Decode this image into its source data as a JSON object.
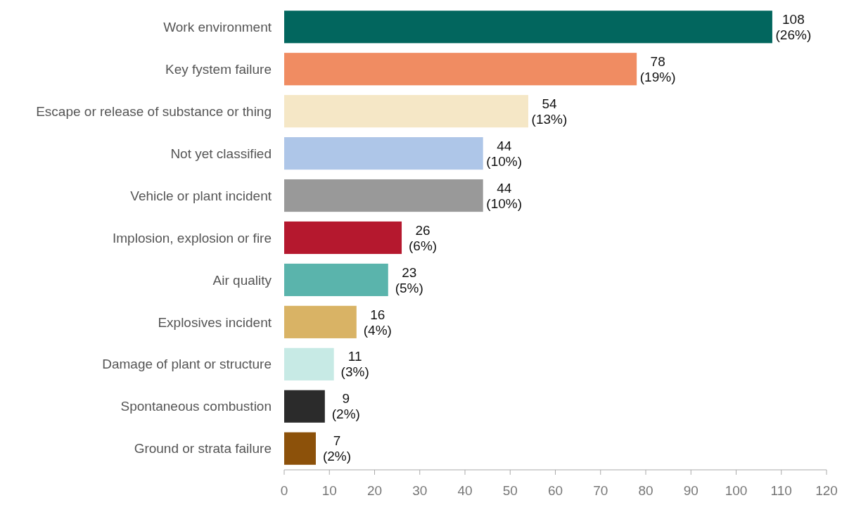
{
  "chart_data": {
    "type": "bar",
    "orientation": "horizontal",
    "categories": [
      "Work environment",
      "Key fystem failure",
      "Escape or release of substance or thing",
      "Not yet classified",
      "Vehicle or plant incident",
      "Implosion, explosion or fire",
      "Air quality",
      "Explosives incident",
      "Damage of plant or structure",
      "Spontaneous combustion",
      "Ground or strata failure"
    ],
    "values": [
      108,
      78,
      54,
      44,
      44,
      26,
      23,
      16,
      11,
      9,
      7
    ],
    "colors": [
      "#02665e",
      "#f08c62",
      "#f5e7c6",
      "#aec6e8",
      "#999999",
      "#b5182e",
      "#5ab4ac",
      "#d9b365",
      "#c7eae5",
      "#2b2b2b",
      "#8c510a"
    ],
    "value_labels": [
      "108 (26%)",
      "78 (19%)",
      "54 (13%)",
      "44 (10%)",
      "44 (10%)",
      "26 (6%)",
      "23 (5%)",
      "16 (4%)",
      "11 (3%)",
      "9 (2%)",
      "7 (2%)"
    ],
    "xlim": [
      0,
      120
    ],
    "xticks": [
      0,
      10,
      20,
      30,
      40,
      50,
      60,
      70,
      80,
      90,
      100,
      110,
      120
    ],
    "grid": false
  }
}
